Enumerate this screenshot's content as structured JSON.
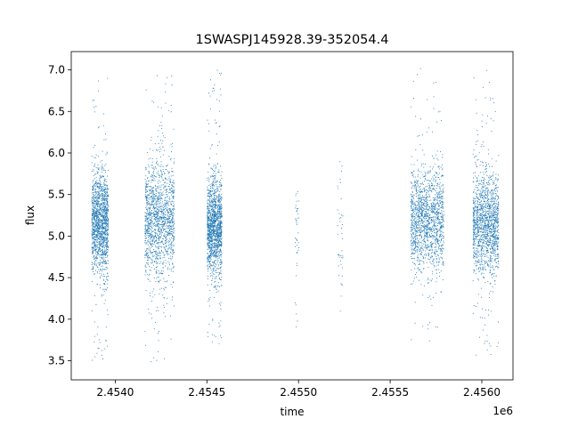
{
  "chart_data": {
    "type": "scatter",
    "title": "1SWASPJ145928.39-352054.4",
    "xlabel": "time",
    "ylabel": "flux",
    "x_offset_label": "1e6",
    "x_tick_labels": [
      "2.4540",
      "2.4545",
      "2.4550",
      "2.4555",
      "2.4560"
    ],
    "x_ticks": [
      2454000,
      2454500,
      2455000,
      2455500,
      2456000
    ],
    "y_tick_labels": [
      "3.5",
      "4.0",
      "4.5",
      "5.0",
      "5.5",
      "6.0",
      "6.5",
      "7.0"
    ],
    "y_ticks": [
      3.5,
      4.0,
      4.5,
      5.0,
      5.5,
      6.0,
      6.5,
      7.0
    ],
    "xlim": [
      2453760,
      2456170
    ],
    "ylim": [
      3.27,
      7.22
    ],
    "grid": false,
    "marker_color": "#1f77b4",
    "clusters": [
      {
        "x_range": [
          2453870,
          2453960
        ],
        "y_center": 5.15,
        "y_spread": 0.3,
        "y_min": 3.5,
        "y_max": 6.95,
        "density": "high"
      },
      {
        "x_range": [
          2454160,
          2454320
        ],
        "y_center": 5.2,
        "y_spread": 0.35,
        "y_min": 3.45,
        "y_max": 7.02,
        "density": "high"
      },
      {
        "x_range": [
          2454500,
          2454580
        ],
        "y_center": 5.1,
        "y_spread": 0.3,
        "y_min": 3.7,
        "y_max": 7.0,
        "density": "high"
      },
      {
        "x_range": [
          2454980,
          2455000
        ],
        "y_center": 5.2,
        "y_spread": 0.3,
        "y_min": 3.8,
        "y_max": 5.75,
        "density": "sparse"
      },
      {
        "x_range": [
          2455210,
          2455240
        ],
        "y_center": 5.1,
        "y_spread": 0.4,
        "y_min": 4.1,
        "y_max": 5.9,
        "density": "sparse"
      },
      {
        "x_range": [
          2455610,
          2455790
        ],
        "y_center": 5.2,
        "y_spread": 0.3,
        "y_min": 3.7,
        "y_max": 7.02,
        "density": "high"
      },
      {
        "x_range": [
          2455950,
          2456090
        ],
        "y_center": 5.15,
        "y_spread": 0.3,
        "y_min": 3.5,
        "y_max": 7.02,
        "density": "high"
      }
    ]
  }
}
